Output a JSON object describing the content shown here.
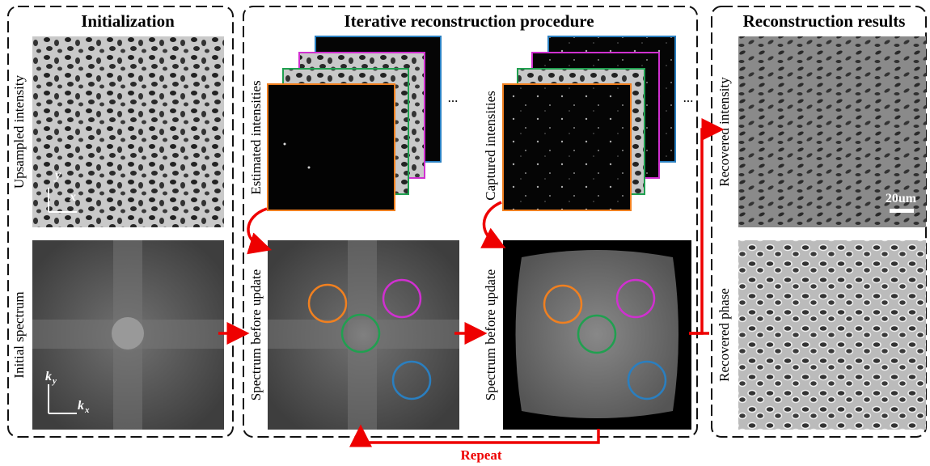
{
  "initialization": {
    "title": "Initialization",
    "upsampled_label": "Upsampled intensity",
    "spectrum_label": "Initial spectrum",
    "axis_y": "y",
    "axis_x": "x",
    "axis_ky": {
      "base": "k",
      "sub": "y"
    },
    "axis_kx": {
      "base": "k",
      "sub": "x"
    }
  },
  "iterative": {
    "title": "Iterative reconstruction procedure",
    "estimated_label": "Estimated intensities",
    "captured_label": "Captured intensities",
    "spectrum_label_1": "Spectrum before update",
    "spectrum_label_2": "Spectrum before update",
    "ellipsis_1": "...",
    "ellipsis_2": "...",
    "repeat": "Repeat"
  },
  "results": {
    "title": "Reconstruction results",
    "intensity_label": "Recovered intensity",
    "phase_label": "Recovered phase",
    "scale_bar": "20um"
  }
}
